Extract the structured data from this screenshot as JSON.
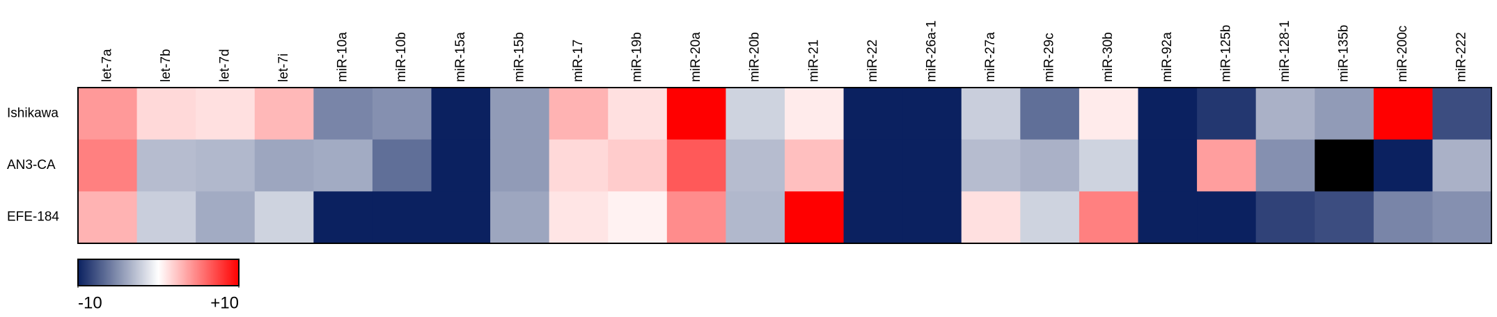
{
  "chart_data": {
    "type": "heatmap",
    "x": [
      "let-7a",
      "let-7b",
      "let-7d",
      "let-7i",
      "miR-10a",
      "miR-10b",
      "miR-15a",
      "miR-15b",
      "miR-17",
      "miR-19b",
      "miR-20a",
      "miR-20b",
      "miR-21",
      "miR-22",
      "miR-26a-1",
      "miR-27a",
      "miR-29c",
      "miR-30b",
      "miR-92a",
      "miR-125b",
      "miR-128-1",
      "miR-135b",
      "miR-200c",
      "miR-222"
    ],
    "y": [
      "Ishikawa",
      "AN3-CA",
      "EFE-184"
    ],
    "values": [
      [
        4,
        1.5,
        1.2,
        2.8,
        -5.5,
        -5,
        -10,
        -4.5,
        3,
        1.2,
        10,
        -2,
        0.8,
        -10,
        -10,
        -2.2,
        -6.5,
        0.8,
        -10,
        -9,
        -3.5,
        -4.5,
        10,
        -8
      ],
      [
        5,
        -3,
        -3.2,
        -4,
        -3.8,
        -6.5,
        -10,
        -4.5,
        1.5,
        2,
        6.5,
        -3,
        2.5,
        -10,
        -10,
        -3,
        -3.5,
        -2,
        -10,
        3.8,
        -5,
        null,
        -10,
        -3.5
      ],
      [
        3,
        -2.2,
        -3.8,
        -2,
        -10,
        -10,
        -10,
        -4,
        1,
        0.5,
        4.5,
        -3.2,
        10,
        -10,
        -10,
        1.2,
        -2,
        5,
        -10,
        -10,
        -8.5,
        -8,
        -5.5,
        -5
      ]
    ],
    "zlim": [
      -10,
      10
    ],
    "zticks": [
      -10,
      {
        "value": 10,
        "label": "+10"
      }
    ],
    "colormap": [
      "#0b2160",
      "#ffffff",
      "#ff0000"
    ],
    "missing_color": "#000000"
  }
}
